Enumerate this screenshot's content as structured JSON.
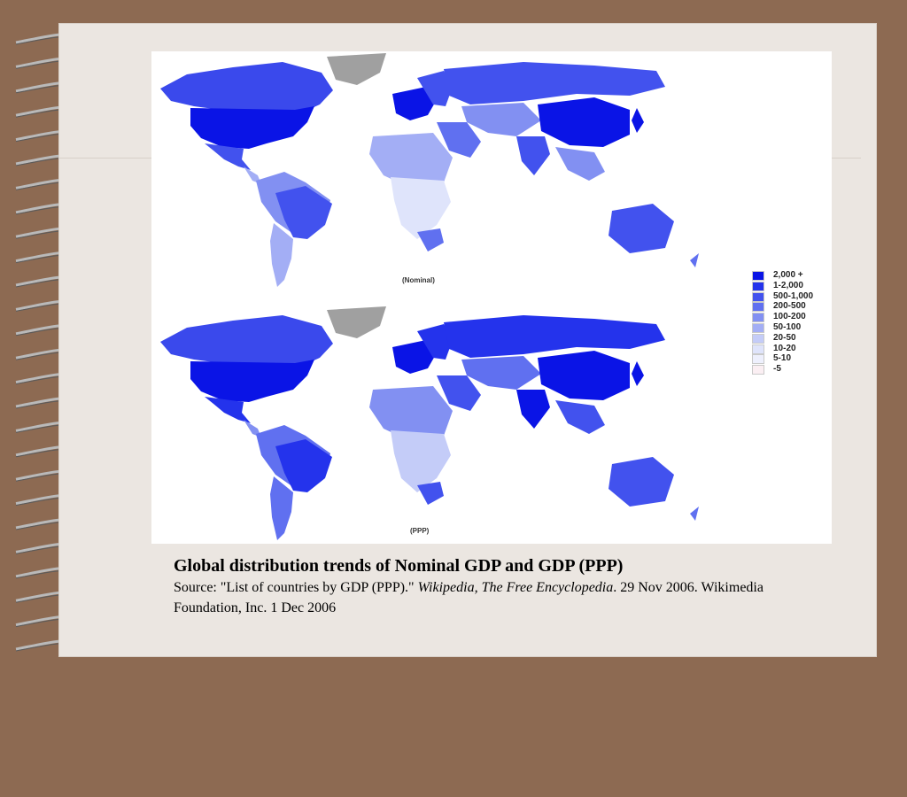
{
  "maps": {
    "nominal_label": "(Nominal)",
    "ppp_label": "(PPP)"
  },
  "legend": {
    "items": [
      {
        "label": "2,000 +",
        "color": "#0a14e6"
      },
      {
        "label": "1-2,000",
        "color": "#2433ec"
      },
      {
        "label": "500-1,000",
        "color": "#4252ee"
      },
      {
        "label": "200-500",
        "color": "#6070f0"
      },
      {
        "label": "100-200",
        "color": "#8290f2"
      },
      {
        "label": "50-100",
        "color": "#a3aef5"
      },
      {
        "label": "20-50",
        "color": "#c4ccf8"
      },
      {
        "label": "10-20",
        "color": "#dfe4fb"
      },
      {
        "label": "5-10",
        "color": "#eef0fd"
      },
      {
        "label": "-5",
        "color": "#fbeff3"
      }
    ]
  },
  "caption": {
    "title": "Global distribution trends of Nominal GDP and GDP (PPP)",
    "source_prefix": "Source: \"List of countries by GDP (PPP).\" ",
    "source_italic": "Wikipedia, The Free Encyclopedia",
    "source_suffix": ". 29 Nov 2006. Wikimedia Foundation, Inc. 1 Dec 2006"
  },
  "colors": {
    "background": "#8d6a52",
    "page": "#ebe6e1",
    "no_data": "#a0a0a0"
  }
}
